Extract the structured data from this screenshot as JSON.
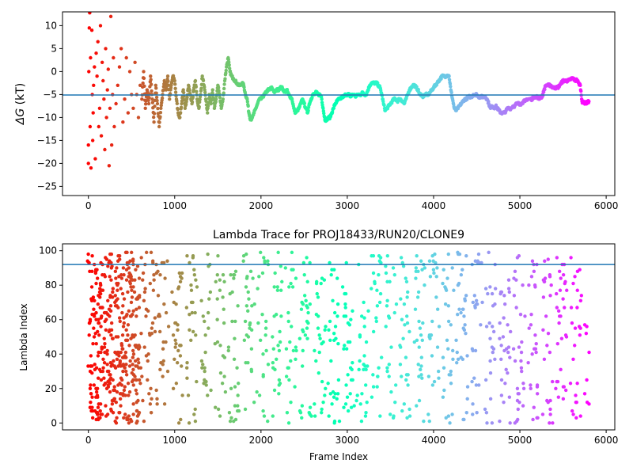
{
  "chart_data": [
    {
      "type": "scatter",
      "title": "",
      "xlabel": "",
      "ylabel": "ΔG (kT)",
      "ylabel_symbol": "ΔG",
      "ylabel_unit": " (kT)",
      "xlim": [
        -300,
        6100
      ],
      "ylim": [
        -27,
        13
      ],
      "xticks": [
        0,
        1000,
        2000,
        3000,
        4000,
        5000,
        6000
      ],
      "yticks": [
        -25,
        -20,
        -15,
        -10,
        -5,
        0,
        5,
        10
      ],
      "hline": {
        "y": -5.1,
        "color": "#1f77b4"
      },
      "colormap": "rainbow_r",
      "frame_range": [
        0,
        5800
      ],
      "points": [
        [
          0,
          -20
        ],
        [
          0,
          -16
        ],
        [
          5,
          0
        ],
        [
          10,
          9.5
        ],
        [
          15,
          12.8
        ],
        [
          20,
          -12
        ],
        [
          25,
          3
        ],
        [
          30,
          -21
        ],
        [
          40,
          9
        ],
        [
          45,
          -5
        ],
        [
          50,
          -15
        ],
        [
          55,
          -9
        ],
        [
          60,
          -3
        ],
        [
          70,
          1
        ],
        [
          80,
          -19
        ],
        [
          90,
          4
        ],
        [
          100,
          -1
        ],
        [
          110,
          6.5
        ],
        [
          120,
          -12
        ],
        [
          130,
          -8
        ],
        [
          140,
          10
        ],
        [
          150,
          -14
        ],
        [
          160,
          2
        ],
        [
          170,
          -2
        ],
        [
          180,
          -6
        ],
        [
          190,
          -17
        ],
        [
          200,
          5
        ],
        [
          210,
          -10
        ],
        [
          220,
          -4
        ],
        [
          230,
          0.5
        ],
        [
          240,
          -20.5
        ],
        [
          250,
          -8
        ],
        [
          260,
          12
        ],
        [
          270,
          -16
        ],
        [
          280,
          -5
        ],
        [
          290,
          3
        ],
        [
          300,
          -12
        ],
        [
          320,
          -7
        ],
        [
          340,
          -3
        ],
        [
          360,
          1
        ],
        [
          380,
          5
        ],
        [
          400,
          -11
        ],
        [
          420,
          -6
        ],
        [
          440,
          3
        ],
        [
          460,
          -9
        ],
        [
          480,
          0
        ],
        [
          500,
          -5
        ],
        [
          520,
          -8
        ],
        [
          540,
          2
        ],
        [
          560,
          -5
        ],
        [
          580,
          -10
        ],
        [
          600,
          -3
        ],
        [
          620,
          -6
        ],
        [
          640,
          0
        ],
        [
          660,
          -8
        ],
        [
          680,
          -4
        ],
        [
          700,
          -7
        ],
        [
          720,
          -1
        ],
        [
          740,
          -6
        ],
        [
          760,
          -11
        ],
        [
          780,
          -3
        ],
        [
          800,
          -7
        ],
        [
          820,
          -12
        ],
        [
          840,
          -8
        ],
        [
          860,
          -5
        ],
        [
          880,
          -2
        ],
        [
          900,
          -4
        ],
        [
          920,
          -1
        ],
        [
          940,
          -6
        ],
        [
          960,
          -3
        ],
        [
          980,
          -1
        ],
        [
          1000,
          -2
        ],
        [
          1020,
          -6
        ],
        [
          1040,
          -9
        ],
        [
          1060,
          -10
        ],
        [
          1080,
          -7
        ],
        [
          1100,
          -4
        ],
        [
          1120,
          -8
        ],
        [
          1140,
          -6
        ],
        [
          1160,
          -3
        ],
        [
          1180,
          -5
        ],
        [
          1200,
          -7
        ],
        [
          1220,
          -4
        ],
        [
          1240,
          -2
        ],
        [
          1260,
          -6
        ],
        [
          1280,
          -8
        ],
        [
          1300,
          -5
        ],
        [
          1320,
          -1
        ],
        [
          1340,
          -3
        ],
        [
          1360,
          -6
        ],
        [
          1380,
          -9
        ],
        [
          1400,
          -5
        ],
        [
          1420,
          -7
        ],
        [
          1440,
          -4
        ],
        [
          1460,
          -8
        ],
        [
          1480,
          -6
        ],
        [
          1500,
          -3
        ],
        [
          1520,
          -5
        ],
        [
          1540,
          -8
        ],
        [
          1560,
          -6
        ],
        [
          1580,
          -2
        ],
        [
          1600,
          1
        ],
        [
          1620,
          3
        ],
        [
          1640,
          0
        ],
        [
          1660,
          -1
        ],
        [
          1680,
          -1.5
        ],
        [
          1700,
          -2
        ],
        [
          1720,
          -2.5
        ],
        [
          1740,
          -3
        ],
        [
          1760,
          -3
        ],
        [
          1780,
          -2.5
        ],
        [
          1800,
          -3
        ],
        [
          1820,
          -5
        ],
        [
          1840,
          -6
        ],
        [
          1860,
          -9
        ],
        [
          1880,
          -10.5
        ],
        [
          1900,
          -10
        ],
        [
          1920,
          -9
        ],
        [
          1940,
          -8
        ],
        [
          1960,
          -7
        ],
        [
          1980,
          -6
        ],
        [
          2000,
          -6
        ],
        [
          2020,
          -5.5
        ],
        [
          2040,
          -5
        ],
        [
          2060,
          -4.5
        ],
        [
          2080,
          -4
        ],
        [
          2100,
          -4
        ],
        [
          2120,
          -3.5
        ],
        [
          2140,
          -4
        ],
        [
          2160,
          -4.5
        ],
        [
          2180,
          -4
        ],
        [
          2200,
          -4
        ],
        [
          2220,
          -3.5
        ],
        [
          2240,
          -3.5
        ],
        [
          2260,
          -4
        ],
        [
          2280,
          -4.5
        ],
        [
          2300,
          -4
        ],
        [
          2320,
          -5
        ],
        [
          2340,
          -5.5
        ],
        [
          2360,
          -6
        ],
        [
          2380,
          -8
        ],
        [
          2400,
          -9
        ],
        [
          2420,
          -8.5
        ],
        [
          2440,
          -8
        ],
        [
          2460,
          -7
        ],
        [
          2480,
          -6
        ],
        [
          2500,
          -7
        ],
        [
          2520,
          -8
        ],
        [
          2540,
          -9
        ],
        [
          2560,
          -7
        ],
        [
          2580,
          -6
        ],
        [
          2600,
          -5
        ],
        [
          2620,
          -5
        ],
        [
          2640,
          -4.5
        ],
        [
          2660,
          -5
        ],
        [
          2680,
          -5
        ],
        [
          2700,
          -5.5
        ],
        [
          2720,
          -8
        ],
        [
          2740,
          -10.5
        ],
        [
          2760,
          -10.5
        ],
        [
          2780,
          -10
        ],
        [
          2800,
          -10
        ],
        [
          2820,
          -9
        ],
        [
          2840,
          -8
        ],
        [
          2860,
          -7
        ],
        [
          2880,
          -6.5
        ],
        [
          2900,
          -6
        ],
        [
          2920,
          -6
        ],
        [
          2940,
          -5.5
        ],
        [
          2960,
          -5.5
        ],
        [
          2980,
          -5
        ],
        [
          3000,
          -5
        ],
        [
          3020,
          -5
        ],
        [
          3040,
          -5.5
        ],
        [
          3060,
          -5
        ],
        [
          3080,
          -5
        ],
        [
          3100,
          -5.5
        ],
        [
          3120,
          -5
        ],
        [
          3140,
          -5
        ],
        [
          3160,
          -5
        ],
        [
          3180,
          -4.5
        ],
        [
          3200,
          -5
        ],
        [
          3220,
          -5
        ],
        [
          3240,
          -4
        ],
        [
          3260,
          -3
        ],
        [
          3280,
          -2.5
        ],
        [
          3300,
          -2.5
        ],
        [
          3320,
          -2.5
        ],
        [
          3340,
          -2.5
        ],
        [
          3360,
          -3
        ],
        [
          3380,
          -3.5
        ],
        [
          3400,
          -5
        ],
        [
          3420,
          -7
        ],
        [
          3440,
          -8.5
        ],
        [
          3460,
          -8
        ],
        [
          3480,
          -7.5
        ],
        [
          3500,
          -7
        ],
        [
          3520,
          -6.5
        ],
        [
          3540,
          -6
        ],
        [
          3560,
          -6
        ],
        [
          3580,
          -6.5
        ],
        [
          3600,
          -6
        ],
        [
          3620,
          -6
        ],
        [
          3640,
          -6.5
        ],
        [
          3660,
          -7
        ],
        [
          3680,
          -6
        ],
        [
          3700,
          -5
        ],
        [
          3720,
          -4
        ],
        [
          3740,
          -3.5
        ],
        [
          3760,
          -3
        ],
        [
          3780,
          -3
        ],
        [
          3800,
          -3.5
        ],
        [
          3820,
          -4
        ],
        [
          3840,
          -5
        ],
        [
          3860,
          -5
        ],
        [
          3880,
          -5.5
        ],
        [
          3900,
          -5
        ],
        [
          3920,
          -5
        ],
        [
          3940,
          -5
        ],
        [
          3960,
          -4.5
        ],
        [
          3980,
          -4
        ],
        [
          4000,
          -3.5
        ],
        [
          4020,
          -3
        ],
        [
          4040,
          -2.5
        ],
        [
          4060,
          -2
        ],
        [
          4080,
          -1.5
        ],
        [
          4100,
          -1
        ],
        [
          4120,
          -1
        ],
        [
          4140,
          -1
        ],
        [
          4160,
          -0.8
        ],
        [
          4180,
          -1
        ],
        [
          4200,
          -4
        ],
        [
          4220,
          -6
        ],
        [
          4240,
          -8
        ],
        [
          4260,
          -8.5
        ],
        [
          4280,
          -8
        ],
        [
          4300,
          -7.5
        ],
        [
          4320,
          -7
        ],
        [
          4340,
          -6.5
        ],
        [
          4360,
          -6
        ],
        [
          4380,
          -6
        ],
        [
          4400,
          -5.5
        ],
        [
          4420,
          -5.5
        ],
        [
          4440,
          -5.5
        ],
        [
          4460,
          -5
        ],
        [
          4480,
          -5
        ],
        [
          4500,
          -5
        ],
        [
          4520,
          -5.5
        ],
        [
          4540,
          -5.5
        ],
        [
          4560,
          -5.5
        ],
        [
          4580,
          -5.5
        ],
        [
          4600,
          -5.5
        ],
        [
          4620,
          -6
        ],
        [
          4640,
          -7
        ],
        [
          4660,
          -8
        ],
        [
          4680,
          -7.5
        ],
        [
          4700,
          -8
        ],
        [
          4720,
          -7.5
        ],
        [
          4740,
          -8
        ],
        [
          4760,
          -8.5
        ],
        [
          4780,
          -9
        ],
        [
          4800,
          -9
        ],
        [
          4820,
          -9
        ],
        [
          4840,
          -8.5
        ],
        [
          4860,
          -8
        ],
        [
          4880,
          -8
        ],
        [
          4900,
          -8
        ],
        [
          4920,
          -7.5
        ],
        [
          4940,
          -7.5
        ],
        [
          4960,
          -7
        ],
        [
          4980,
          -7
        ],
        [
          5000,
          -7
        ],
        [
          5020,
          -7
        ],
        [
          5040,
          -6.5
        ],
        [
          5060,
          -6.5
        ],
        [
          5080,
          -6
        ],
        [
          5100,
          -6
        ],
        [
          5120,
          -6
        ],
        [
          5140,
          -6
        ],
        [
          5160,
          -5.5
        ],
        [
          5180,
          -5.5
        ],
        [
          5200,
          -5.5
        ],
        [
          5220,
          -6
        ],
        [
          5240,
          -5.5
        ],
        [
          5260,
          -5.5
        ],
        [
          5280,
          -4
        ],
        [
          5300,
          -3
        ],
        [
          5320,
          -3
        ],
        [
          5340,
          -3
        ],
        [
          5360,
          -3
        ],
        [
          5380,
          -3.5
        ],
        [
          5400,
          -3.5
        ],
        [
          5420,
          -3.5
        ],
        [
          5440,
          -3.5
        ],
        [
          5460,
          -3
        ],
        [
          5480,
          -2.5
        ],
        [
          5500,
          -2
        ],
        [
          5520,
          -2
        ],
        [
          5540,
          -2
        ],
        [
          5560,
          -2
        ],
        [
          5580,
          -1.8
        ],
        [
          5600,
          -1.5
        ],
        [
          5620,
          -1.5
        ],
        [
          5640,
          -2
        ],
        [
          5660,
          -1.8
        ],
        [
          5680,
          -2.5
        ],
        [
          5700,
          -3
        ],
        [
          5720,
          -6.5
        ],
        [
          5740,
          -6.8
        ],
        [
          5760,
          -6.8
        ],
        [
          5780,
          -6.8
        ],
        [
          5800,
          -6.5
        ]
      ]
    },
    {
      "type": "scatter",
      "title": "Lambda Trace for PROJ18433/RUN20/CLONE9",
      "xlabel": "Frame Index",
      "ylabel": "Lambda Index",
      "xlim": [
        -300,
        6100
      ],
      "ylim": [
        -4,
        104
      ],
      "xticks": [
        0,
        1000,
        2000,
        3000,
        4000,
        5000,
        6000
      ],
      "yticks": [
        0,
        20,
        40,
        60,
        80,
        100
      ],
      "hline": {
        "y": 92,
        "color": "#1f77b4"
      },
      "colormap": "rainbow_r",
      "frame_range": [
        0,
        5800
      ],
      "lambda_range": [
        0,
        99
      ],
      "description_of_points": "dense scatter of lambda indices 0-99 across frames 0-5800, with vertical bands separated by gaps"
    }
  ]
}
